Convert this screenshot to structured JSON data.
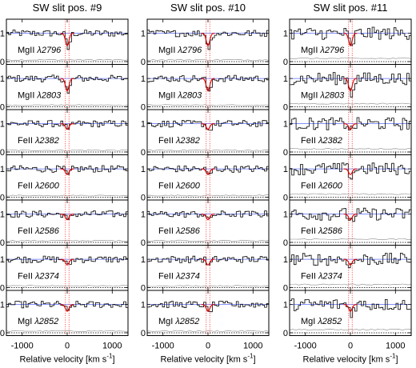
{
  "chart_data": [
    {
      "type": "line",
      "title": "SW slit pos. #9",
      "xlabel": "Relative velocity [km s",
      "xlabel_sup": "-1",
      "xlabel_end": "]",
      "xlim": [
        -1350,
        1350
      ],
      "ylim": [
        -0.1,
        1.5
      ],
      "xticks": [
        -1000,
        0,
        1000
      ],
      "xtick_labels": [
        "-1000",
        "0",
        "1000"
      ],
      "yticks": [
        0,
        1
      ],
      "ytick_labels": [
        "0",
        "1"
      ],
      "panels": [
        {
          "ion": "MgII",
          "wave": "λ2796",
          "fit": true
        },
        {
          "ion": "MgII",
          "wave": "λ2803",
          "fit": true
        },
        {
          "ion": "FeII",
          "wave": "λ2382",
          "fit": true
        },
        {
          "ion": "FeII",
          "wave": "λ2600",
          "fit": true
        },
        {
          "ion": "FeII",
          "wave": "λ2586",
          "fit": true
        },
        {
          "ion": "FeII",
          "wave": "λ2374",
          "fit": true
        },
        {
          "ion": "MgI",
          "wave": "λ2852",
          "fit": true
        }
      ]
    },
    {
      "type": "line",
      "title": "SW slit pos. #10",
      "xlabel": "Relative velocity [km s",
      "xlabel_sup": "-1",
      "xlabel_end": "]",
      "xlim": [
        -1350,
        1350
      ],
      "ylim": [
        -0.1,
        1.5
      ],
      "xticks": [
        -1000,
        0,
        1000
      ],
      "xtick_labels": [
        "-1000",
        "0",
        "1000"
      ],
      "yticks": [
        0,
        1
      ],
      "ytick_labels": [
        "0",
        "1"
      ],
      "panels": [
        {
          "ion": "MgII",
          "wave": "λ2796",
          "fit": true
        },
        {
          "ion": "MgII",
          "wave": "λ2803",
          "fit": true
        },
        {
          "ion": "FeII",
          "wave": "λ2382",
          "fit": true
        },
        {
          "ion": "FeII",
          "wave": "λ2600",
          "fit": true
        },
        {
          "ion": "FeII",
          "wave": "λ2586",
          "fit": true
        },
        {
          "ion": "FeII",
          "wave": "λ2374",
          "fit": true
        },
        {
          "ion": "MgI",
          "wave": "λ2852",
          "fit": true
        }
      ]
    },
    {
      "type": "line",
      "title": "SW slit pos. #11",
      "xlabel": "Relative velocity [km s",
      "xlabel_sup": "-1",
      "xlabel_end": "]",
      "xlim": [
        -1350,
        1350
      ],
      "ylim": [
        -0.1,
        1.5
      ],
      "xticks": [
        -1000,
        0,
        1000
      ],
      "xtick_labels": [
        "-1000",
        "0",
        "1000"
      ],
      "yticks": [
        0,
        1
      ],
      "ytick_labels": [
        "0",
        "1"
      ],
      "panels": [
        {
          "ion": "MgII",
          "wave": "λ2796",
          "fit": true
        },
        {
          "ion": "MgII",
          "wave": "λ2803",
          "fit": true
        },
        {
          "ion": "FeII",
          "wave": "λ2382",
          "fit": true
        },
        {
          "ion": "FeII",
          "wave": "λ2600",
          "fit": true
        },
        {
          "ion": "FeII",
          "wave": "λ2586",
          "fit": true
        },
        {
          "ion": "FeII",
          "wave": "λ2374",
          "fit": true
        },
        {
          "ion": "MgI",
          "wave": "λ2852",
          "fit": true
        }
      ]
    }
  ]
}
